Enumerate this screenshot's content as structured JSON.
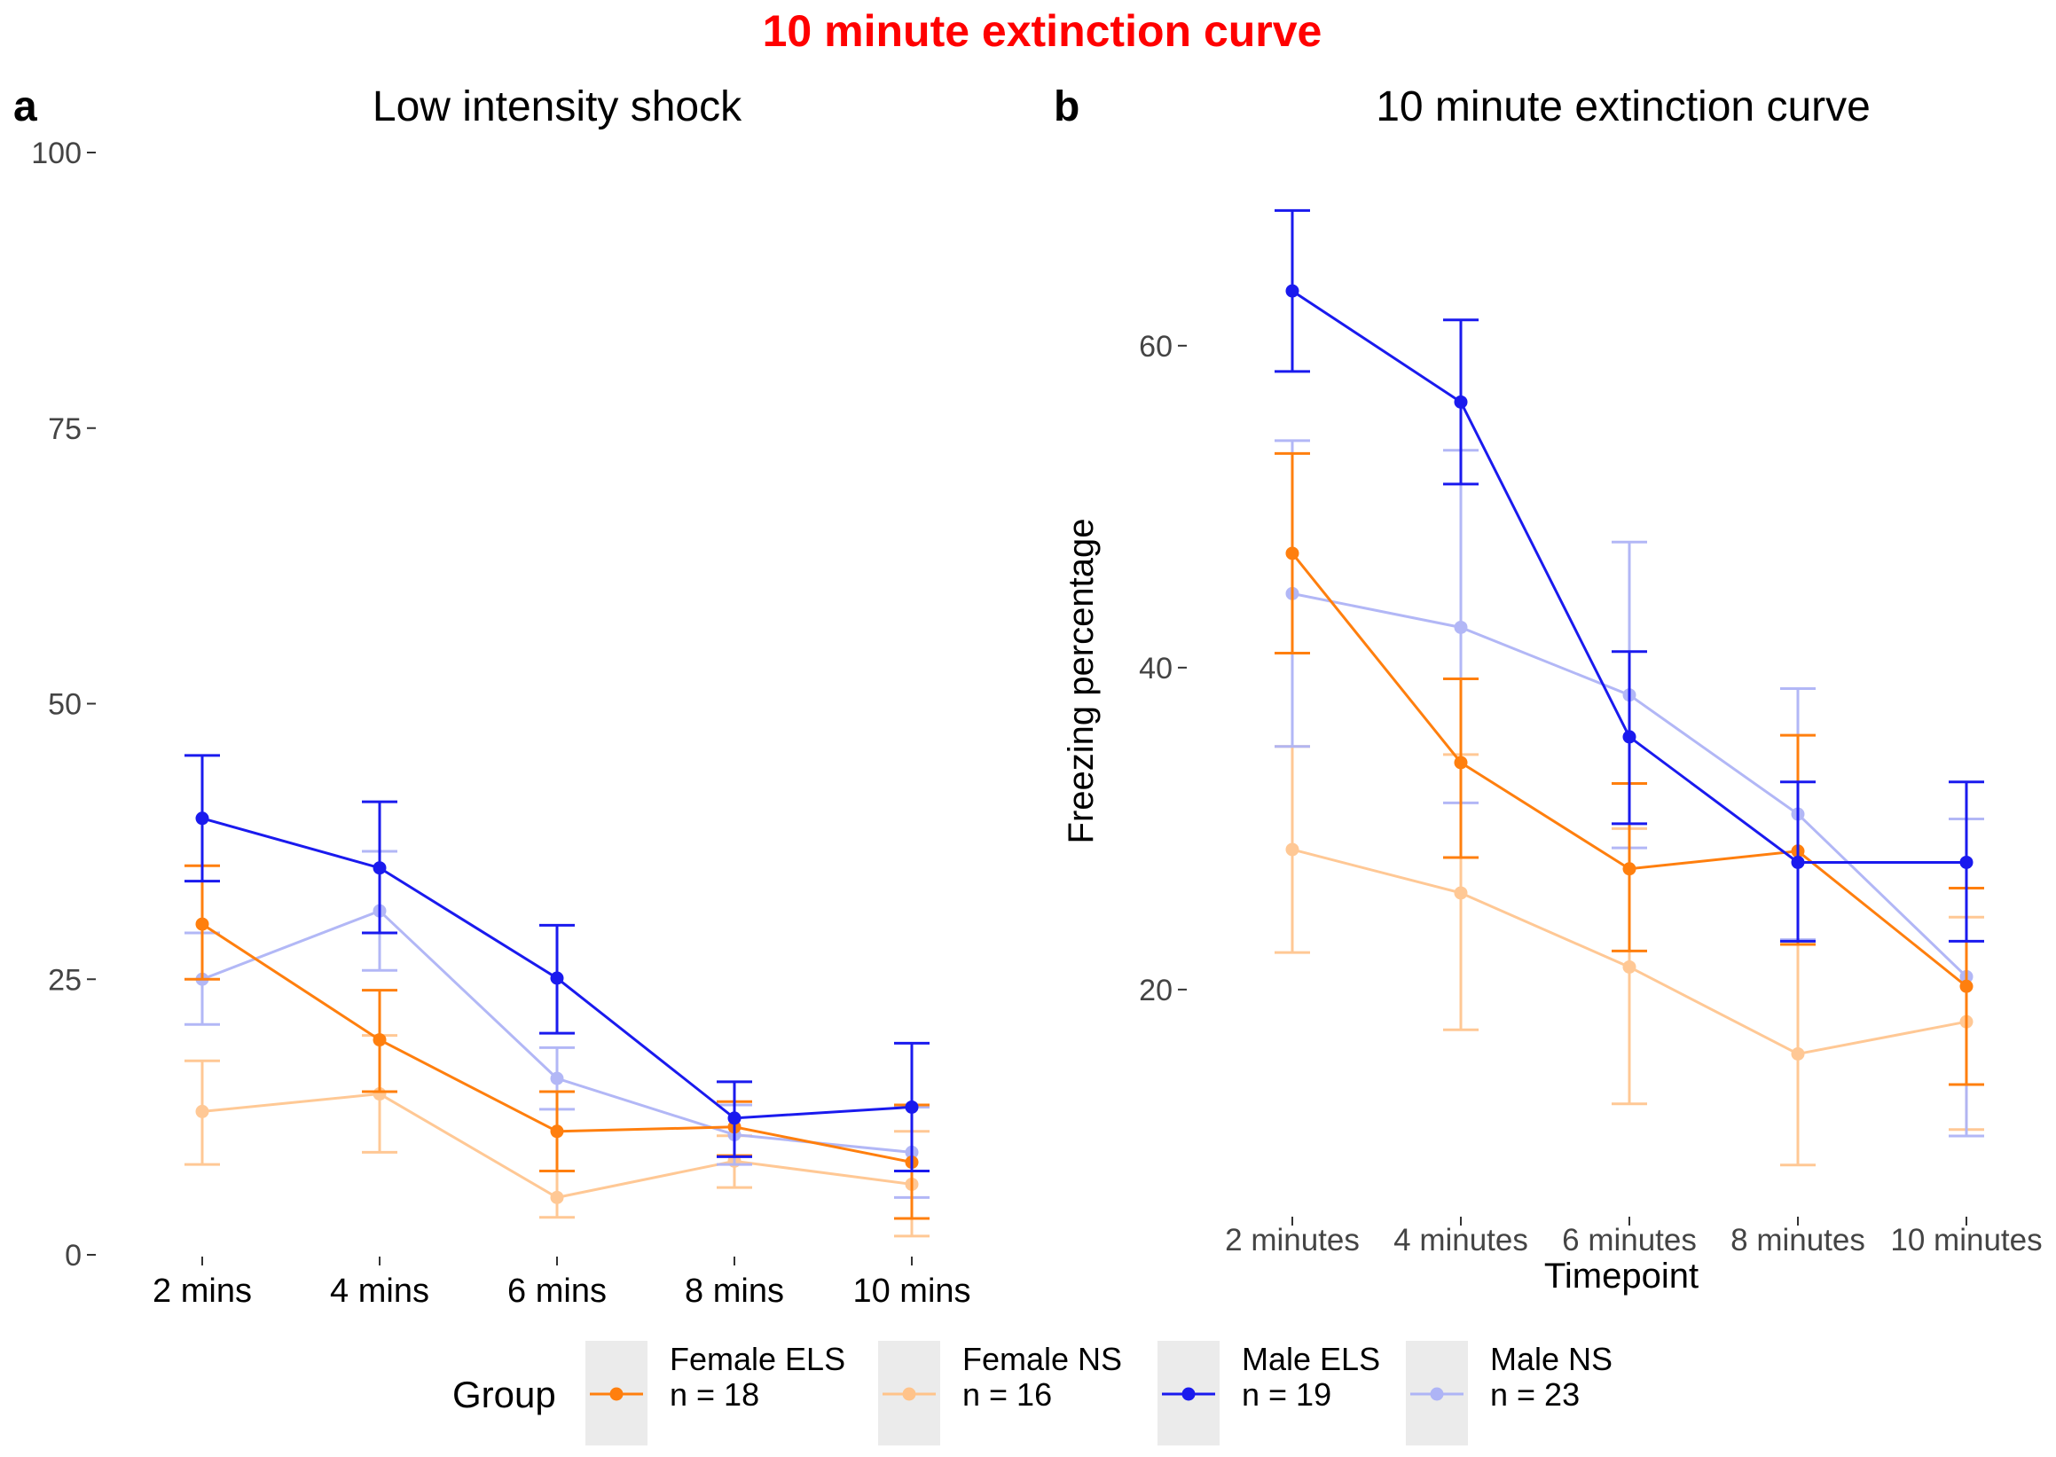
{
  "figure": {
    "suptitle": "10 minute extinction curve",
    "suptitle_color": "#FF0000"
  },
  "legend": {
    "title": "Group",
    "placement": "bottom",
    "items": [
      {
        "line1": "Female ELS",
        "line2": " n = 18",
        "color": "#FF7F0E"
      },
      {
        "line1": "Female NS",
        "line2": " n = 16",
        "color": "#FFC38A"
      },
      {
        "line1": "Male ELS",
        "line2": " n = 19",
        "color": "#1A1AEE"
      },
      {
        "line1": "Male NS",
        "line2": " n = 23",
        "color": "#AEB4F6"
      }
    ]
  },
  "chart_data": [
    {
      "panel_label": "a",
      "type": "line",
      "title": "Low intensity shock",
      "xlabel": "",
      "ylabel": "",
      "categories": [
        "2 mins",
        "4 mins",
        "6 mins",
        "8 mins",
        "10 mins"
      ],
      "ylim": [
        0,
        100
      ],
      "yticks": [
        0,
        25,
        50,
        75,
        100
      ],
      "grid": false,
      "series": [
        {
          "name": "Female ELS",
          "color": "#FF7F0E",
          "opacity": 1.0,
          "values": [
            30.0,
            19.5,
            11.2,
            11.6,
            8.4
          ],
          "err_low": [
            25.0,
            14.8,
            7.6,
            9.0,
            3.3
          ],
          "err_high": [
            35.3,
            24.0,
            14.8,
            13.9,
            13.6
          ]
        },
        {
          "name": "Female NS",
          "color": "#FFC38A",
          "opacity": 0.9,
          "values": [
            13.0,
            14.6,
            5.2,
            8.5,
            6.4
          ],
          "err_low": [
            8.2,
            9.3,
            3.4,
            6.1,
            1.7
          ],
          "err_high": [
            17.6,
            19.9,
            7.6,
            10.8,
            11.2
          ]
        },
        {
          "name": "Male ELS",
          "color": "#1A1AEE",
          "opacity": 1.0,
          "values": [
            39.6,
            35.1,
            25.1,
            12.4,
            13.4
          ],
          "err_low": [
            33.9,
            29.2,
            20.1,
            8.9,
            7.6
          ],
          "err_high": [
            45.3,
            41.1,
            29.9,
            15.7,
            19.2
          ]
        },
        {
          "name": "Male NS",
          "color": "#AEB4F6",
          "opacity": 0.95,
          "values": [
            25.0,
            31.2,
            16.0,
            10.9,
            9.3
          ],
          "err_low": [
            20.9,
            25.8,
            13.2,
            8.2,
            5.2
          ],
          "err_high": [
            29.2,
            36.6,
            18.8,
            13.6,
            13.4
          ]
        }
      ]
    },
    {
      "panel_label": "b",
      "type": "line",
      "title": "10 minute extinction curve",
      "xlabel": "Timepoint",
      "ylabel": "Freezing percentage",
      "categories": [
        "2 minutes",
        "4 minutes",
        "6 minutes",
        "8 minutes",
        "10 minutes"
      ],
      "ylim": [
        6,
        72
      ],
      "yticks": [
        20,
        40,
        60
      ],
      "grid": false,
      "series": [
        {
          "name": "Female ELS",
          "color": "#FF7F0E",
          "opacity": 1.0,
          "values": [
            47.1,
            34.1,
            27.5,
            28.6,
            20.2
          ],
          "err_low": [
            40.9,
            28.2,
            22.4,
            22.8,
            14.1
          ],
          "err_high": [
            53.3,
            39.3,
            32.8,
            35.8,
            26.3
          ]
        },
        {
          "name": "Female NS",
          "color": "#FFC38A",
          "opacity": 0.9,
          "values": [
            28.7,
            26.0,
            21.4,
            16.0,
            18.0
          ],
          "err_low": [
            22.3,
            17.5,
            12.9,
            9.1,
            11.3
          ],
          "err_high": [
            35.1,
            34.6,
            30.0,
            23.0,
            24.5
          ]
        },
        {
          "name": "Male ELS",
          "color": "#1A1AEE",
          "opacity": 1.0,
          "values": [
            63.4,
            56.5,
            35.7,
            27.9,
            27.9
          ],
          "err_low": [
            58.4,
            51.4,
            30.3,
            23.0,
            23.0
          ],
          "err_high": [
            68.4,
            61.6,
            41.0,
            32.9,
            32.9
          ]
        },
        {
          "name": "Male NS",
          "color": "#AEB4F6",
          "opacity": 0.95,
          "values": [
            44.6,
            42.5,
            38.3,
            30.9,
            20.8
          ],
          "err_low": [
            35.1,
            31.6,
            28.8,
            23.1,
            10.9
          ],
          "err_high": [
            54.1,
            53.5,
            47.8,
            38.7,
            30.6
          ]
        }
      ]
    }
  ]
}
